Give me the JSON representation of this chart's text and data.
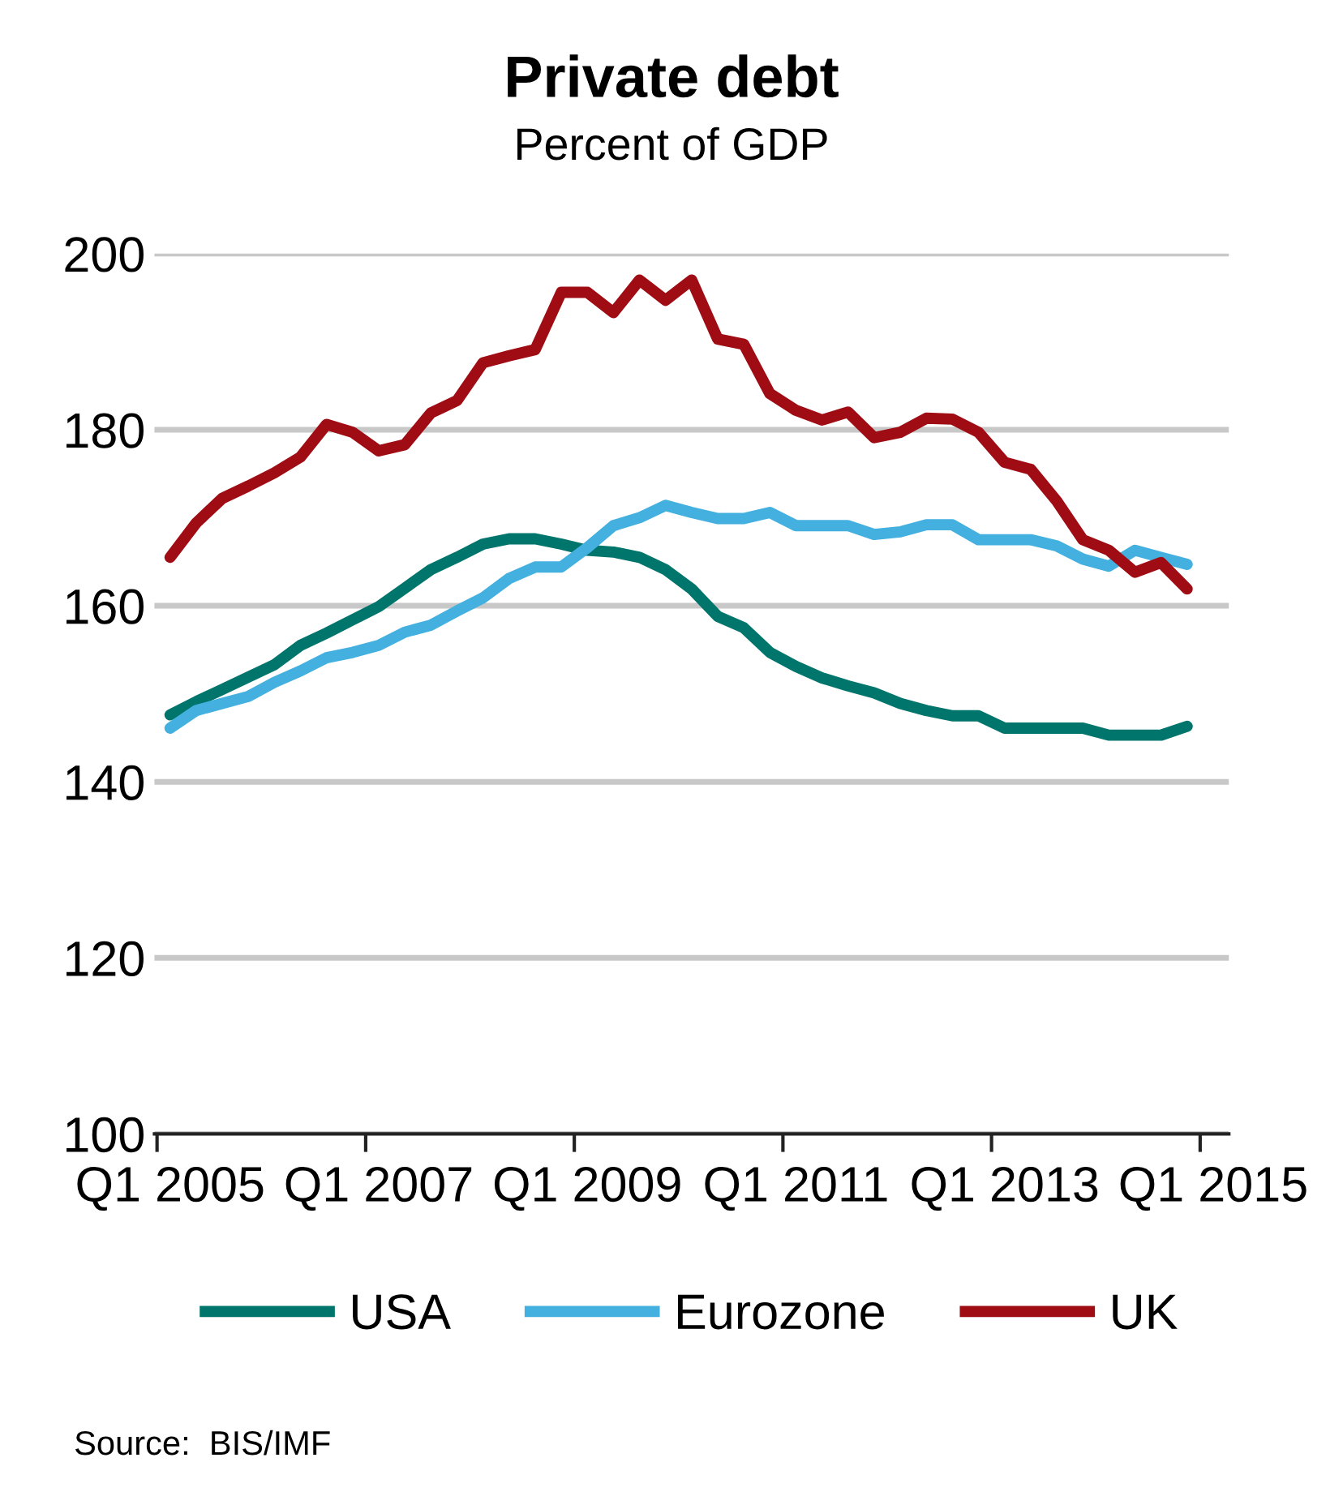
{
  "chart_data": {
    "type": "line",
    "title": "Private debt",
    "subtitle": "Percent of GDP",
    "categories": [
      "Q1 2005",
      null,
      null,
      null,
      null,
      null,
      null,
      null,
      "Q1 2007",
      null,
      null,
      null,
      null,
      null,
      null,
      null,
      "Q1 2009",
      null,
      null,
      null,
      null,
      null,
      null,
      null,
      "Q1 2011",
      null,
      null,
      null,
      null,
      null,
      null,
      null,
      "Q1 2013",
      null,
      null,
      null,
      null,
      null,
      null,
      null,
      "Q1 2015"
    ],
    "series": [
      {
        "name": "USA",
        "color": "#00756c",
        "values": [
          147.6,
          149.1,
          150.5,
          151.9,
          153.3,
          155.5,
          156.9,
          158.4,
          159.9,
          162.0,
          164.1,
          165.5,
          167.0,
          167.6,
          167.6,
          167.0,
          166.3,
          166.1,
          165.5,
          164.1,
          161.9,
          158.8,
          157.5,
          154.7,
          153.1,
          151.8,
          150.9,
          150.1,
          148.9,
          148.1,
          147.5,
          147.5,
          146.1,
          146.1,
          146.1,
          146.1,
          145.3,
          145.3,
          145.3,
          146.3,
          null
        ]
      },
      {
        "name": "Eurozone",
        "color": "#44b0e0",
        "values": [
          146.1,
          148.1,
          148.9,
          149.7,
          151.3,
          152.6,
          154.1,
          154.7,
          155.5,
          157.0,
          157.8,
          159.4,
          160.9,
          163.1,
          164.4,
          164.4,
          166.6,
          169.1,
          170.0,
          171.4,
          170.6,
          169.9,
          169.9,
          170.6,
          169.1,
          169.1,
          169.1,
          168.1,
          168.4,
          169.2,
          169.2,
          167.5,
          167.5,
          167.5,
          166.8,
          165.3,
          164.5,
          166.3,
          165.5,
          164.7,
          null
        ]
      },
      {
        "name": "UK",
        "color": "#a00c14",
        "values": [
          165.5,
          169.4,
          172.2,
          173.6,
          175.1,
          176.9,
          180.6,
          179.7,
          177.6,
          178.3,
          181.9,
          183.3,
          187.6,
          188.4,
          189.1,
          195.6,
          195.6,
          193.3,
          197.0,
          194.7,
          197.0,
          190.3,
          189.7,
          184.1,
          182.2,
          181.1,
          182.0,
          179.1,
          179.7,
          181.3,
          181.2,
          179.7,
          176.3,
          175.5,
          171.9,
          167.5,
          166.3,
          163.8,
          164.9,
          161.9,
          null
        ]
      }
    ],
    "ylim": [
      100,
      200
    ],
    "yticks": [
      100,
      120,
      140,
      160,
      180,
      200
    ],
    "grid": "y",
    "legend": "bottom",
    "marker": "none",
    "line_style": "solid",
    "annotations": [
      "Source:  BIS/IMF"
    ]
  }
}
